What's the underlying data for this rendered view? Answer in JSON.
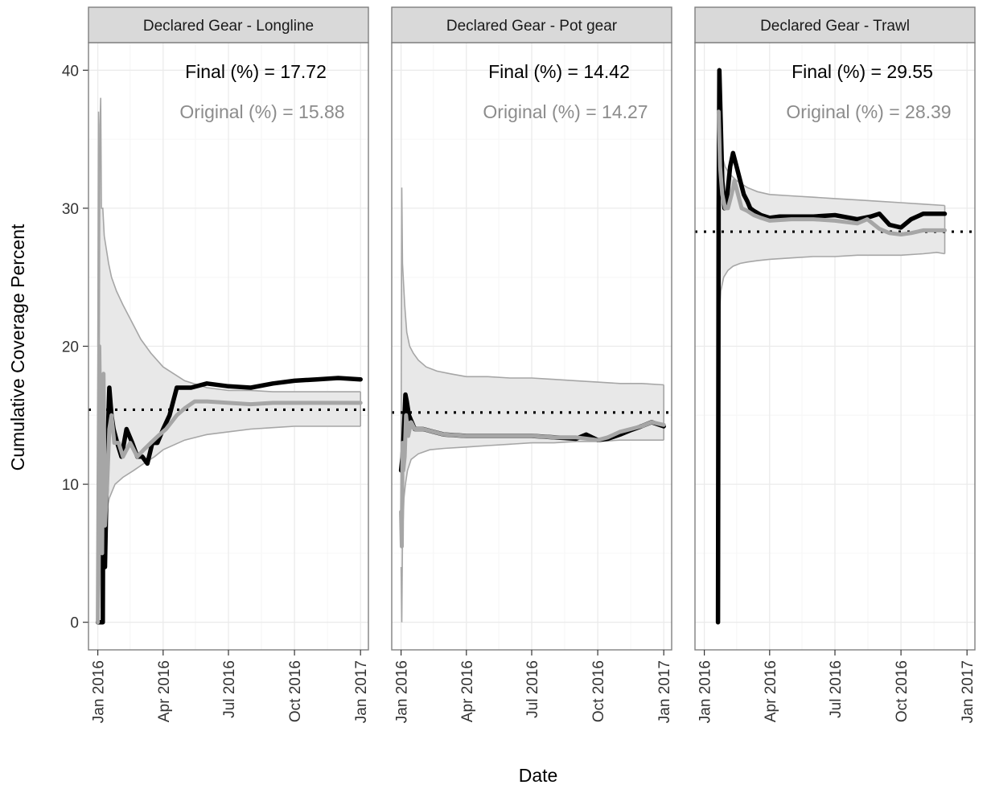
{
  "figure": {
    "xlabel": "Date",
    "ylabel": "Cumulative Coverage Percent"
  },
  "colors": {
    "panel_border": "#7f7f7f",
    "strip_fill": "#d9d9d9",
    "grid_major": "#ebebeb",
    "grid_minor": "#f6f6f6",
    "band_fill": "#e8e8e8",
    "band_line": "#a6a6a6",
    "final_line": "#000000",
    "original_line": "#a6a6a6",
    "final_text": "#000000",
    "original_text": "#8c8c8c",
    "reference_line": "#000000"
  },
  "chart_data": {
    "type": "line",
    "xlabel": "Date",
    "ylabel": "Cumulative Coverage Percent",
    "xlim": [
      "2015-12-19",
      "2017-01-12"
    ],
    "ylim": [
      -2,
      42
    ],
    "x_ticks": [
      "2016-01-01",
      "2016-04-01",
      "2016-07-01",
      "2016-10-01",
      "2017-01-01"
    ],
    "x_tick_labels": [
      "Jan 2016",
      "Apr 2016",
      "Jul 2016",
      "Oct 2016",
      "Jan 2017"
    ],
    "y_ticks": [
      0,
      10,
      20,
      30,
      40
    ],
    "y_tick_labels": [
      "0",
      "10",
      "20",
      "30",
      "40"
    ],
    "grid": true,
    "panels": [
      {
        "strip": "Declared Gear - Longline",
        "final_label": "Final (%) = 17.72",
        "original_label": "Original (%) = 15.88",
        "reference_y": 15.4,
        "series": [
          {
            "key": "final",
            "x": [
              "2016-01-01",
              "2016-01-03",
              "2016-01-06",
              "2016-01-08",
              "2016-01-09",
              "2016-01-11",
              "2016-01-14",
              "2016-01-17",
              "2016-01-20",
              "2016-01-23",
              "2016-01-28",
              "2016-02-03",
              "2016-02-10",
              "2016-02-18",
              "2016-02-25",
              "2016-03-03",
              "2016-03-10",
              "2016-03-17",
              "2016-03-24",
              "2016-04-01",
              "2016-04-10",
              "2016-04-20",
              "2016-05-01",
              "2016-05-10",
              "2016-06-01",
              "2016-07-01",
              "2016-08-01",
              "2016-09-01",
              "2016-10-01",
              "2016-11-01",
              "2016-12-01",
              "2017-01-01"
            ],
            "y": [
              0,
              0,
              0,
              0,
              15,
              4,
              12,
              17,
              15,
              14,
              13,
              12,
              14,
              13,
              12,
              12,
              11.5,
              13,
              13,
              14,
              15,
              17,
              17,
              17,
              17.3,
              17.1,
              17.0,
              17.3,
              17.5,
              17.6,
              17.7,
              17.6
            ]
          },
          {
            "key": "original",
            "x": [
              "2016-01-01",
              "2016-01-03",
              "2016-01-05",
              "2016-01-07",
              "2016-01-09",
              "2016-01-11",
              "2016-01-14",
              "2016-01-17",
              "2016-01-20",
              "2016-01-24",
              "2016-01-30",
              "2016-02-05",
              "2016-02-15",
              "2016-02-25",
              "2016-03-05",
              "2016-03-15",
              "2016-03-25",
              "2016-04-05",
              "2016-04-20",
              "2016-05-01",
              "2016-05-15",
              "2016-06-01",
              "2016-07-01",
              "2016-08-01",
              "2016-09-01",
              "2016-10-01",
              "2016-11-01",
              "2016-12-01",
              "2017-01-01"
            ],
            "y": [
              0,
              20,
              12,
              5,
              18,
              7,
              10,
              14,
              15,
              13,
              13,
              12,
              13,
              12,
              12.5,
              13,
              13.5,
              14,
              15,
              15.5,
              16,
              16,
              15.9,
              15.8,
              15.9,
              15.9,
              15.9,
              15.9,
              15.9
            ]
          },
          {
            "key": "band_upper",
            "x": [
              "2016-01-01",
              "2016-01-02",
              "2016-01-03",
              "2016-01-04",
              "2016-01-05",
              "2016-01-06",
              "2016-01-08",
              "2016-01-10",
              "2016-01-13",
              "2016-01-16",
              "2016-01-20",
              "2016-01-27",
              "2016-02-05",
              "2016-02-15",
              "2016-03-01",
              "2016-03-15",
              "2016-04-01",
              "2016-05-01",
              "2016-06-01",
              "2016-07-01",
              "2016-08-01",
              "2016-09-01",
              "2016-10-01",
              "2016-11-01",
              "2016-12-01",
              "2017-01-01"
            ],
            "y": [
              20,
              37,
              18,
              36,
              38,
              30,
              30,
              28,
              27,
              26,
              25,
              24,
              23,
              22,
              20.5,
              19.5,
              18.5,
              17.5,
              17,
              16.8,
              16.8,
              16.7,
              16.7,
              16.7,
              16.7,
              16.7
            ]
          },
          {
            "key": "band_lower",
            "x": [
              "2016-01-01",
              "2016-01-02",
              "2016-01-03",
              "2016-01-04",
              "2016-01-06",
              "2016-01-08",
              "2016-01-10",
              "2016-01-13",
              "2016-01-17",
              "2016-01-25",
              "2016-02-05",
              "2016-02-20",
              "2016-03-05",
              "2016-03-20",
              "2016-04-01",
              "2016-05-01",
              "2016-06-01",
              "2016-07-01",
              "2016-08-01",
              "2016-09-01",
              "2016-10-01",
              "2016-11-01",
              "2016-12-01",
              "2017-01-01"
            ],
            "y": [
              0,
              5,
              1,
              3,
              6,
              5,
              7,
              8,
              9,
              10,
              10.5,
              11,
              11.5,
              12,
              12.5,
              13.2,
              13.6,
              13.8,
              14.0,
              14.1,
              14.2,
              14.2,
              14.2,
              14.2
            ]
          }
        ]
      },
      {
        "strip": "Declared Gear - Pot gear",
        "final_label": "Final (%) = 14.42",
        "original_label": "Original (%) = 14.27",
        "reference_y": 15.2,
        "series": [
          {
            "key": "final",
            "x": [
              "2016-01-01",
              "2016-01-03",
              "2016-01-05",
              "2016-01-07",
              "2016-01-09",
              "2016-01-12",
              "2016-01-16",
              "2016-01-20",
              "2016-01-25",
              "2016-02-01",
              "2016-02-15",
              "2016-03-01",
              "2016-04-01",
              "2016-05-01",
              "2016-06-01",
              "2016-07-01",
              "2016-08-01",
              "2016-09-01",
              "2016-09-15",
              "2016-10-01",
              "2016-10-15",
              "2016-11-01",
              "2016-11-15",
              "2016-12-01",
              "2016-12-15",
              "2017-01-01"
            ],
            "y": [
              11,
              12,
              14,
              16.5,
              16,
              15,
              14.5,
              14,
              14,
              14,
              13.8,
              13.6,
              13.5,
              13.5,
              13.5,
              13.5,
              13.4,
              13.3,
              13.6,
              13.2,
              13.3,
              13.6,
              13.9,
              14.2,
              14.5,
              14.2
            ]
          },
          {
            "key": "original",
            "x": [
              "2016-01-01",
              "2016-01-02",
              "2016-01-03",
              "2016-01-04",
              "2016-01-06",
              "2016-01-08",
              "2016-01-11",
              "2016-01-15",
              "2016-01-20",
              "2016-02-01",
              "2016-02-15",
              "2016-03-01",
              "2016-04-01",
              "2016-05-01",
              "2016-06-01",
              "2016-07-01",
              "2016-08-01",
              "2016-09-01",
              "2016-10-01",
              "2016-10-15",
              "2016-11-01",
              "2016-12-01",
              "2016-12-15",
              "2017-01-01"
            ],
            "y": [
              8,
              5.5,
              13,
              11,
              12,
              15,
              13.5,
              14.5,
              14,
              14,
              13.8,
              13.6,
              13.5,
              13.5,
              13.5,
              13.5,
              13.4,
              13.4,
              13.2,
              13.4,
              13.8,
              14.2,
              14.5,
              14.3
            ]
          },
          {
            "key": "band_upper",
            "x": [
              "2016-01-01",
              "2016-01-02",
              "2016-01-03",
              "2016-01-04",
              "2016-01-06",
              "2016-01-09",
              "2016-01-13",
              "2016-01-18",
              "2016-01-25",
              "2016-02-05",
              "2016-02-20",
              "2016-03-10",
              "2016-04-01",
              "2016-05-01",
              "2016-06-01",
              "2016-07-01",
              "2016-08-01",
              "2016-09-01",
              "2016-10-01",
              "2016-11-01",
              "2016-12-01",
              "2017-01-01"
            ],
            "y": [
              12,
              31.5,
              26,
              25,
              23,
              21,
              20,
              19.5,
              19,
              18.5,
              18.2,
              18,
              17.8,
              17.8,
              17.7,
              17.7,
              17.6,
              17.5,
              17.4,
              17.3,
              17.3,
              17.2
            ]
          },
          {
            "key": "band_lower",
            "x": [
              "2016-01-01",
              "2016-01-02",
              "2016-01-03",
              "2016-01-05",
              "2016-01-07",
              "2016-01-10",
              "2016-01-15",
              "2016-01-25",
              "2016-02-10",
              "2016-03-01",
              "2016-04-01",
              "2016-05-01",
              "2016-06-01",
              "2016-07-01",
              "2016-08-01",
              "2016-09-01",
              "2016-10-01",
              "2016-11-01",
              "2016-12-01",
              "2017-01-01"
            ],
            "y": [
              4,
              0,
              6,
              9,
              10,
              11,
              11.8,
              12.2,
              12.5,
              12.6,
              12.7,
              12.8,
              12.9,
              13.0,
              13.0,
              13.1,
              13.1,
              13.2,
              13.2,
              13.2
            ]
          }
        ]
      },
      {
        "strip": "Declared Gear - Trawl",
        "final_label": "Final (%) = 29.55",
        "original_label": "Original (%) = 28.39",
        "reference_y": 28.3,
        "series": [
          {
            "key": "final",
            "x": [
              "2016-01-20",
              "2016-01-21",
              "2016-01-22",
              "2016-01-23",
              "2016-01-26",
              "2016-01-29",
              "2016-02-02",
              "2016-02-06",
              "2016-02-10",
              "2016-02-15",
              "2016-02-20",
              "2016-02-25",
              "2016-03-01",
              "2016-03-05",
              "2016-03-10",
              "2016-03-20",
              "2016-04-01",
              "2016-04-15",
              "2016-05-01",
              "2016-06-01",
              "2016-07-01",
              "2016-08-01",
              "2016-08-20",
              "2016-09-01",
              "2016-09-15",
              "2016-10-01",
              "2016-10-15",
              "2016-11-01",
              "2016-11-15",
              "2016-12-01"
            ],
            "y": [
              0,
              30,
              40,
              38,
              32,
              30,
              31,
              33,
              34,
              33,
              32,
              31,
              30.5,
              30,
              29.8,
              29.5,
              29.3,
              29.4,
              29.4,
              29.4,
              29.5,
              29.2,
              29.4,
              29.6,
              28.8,
              28.6,
              29.2,
              29.6,
              29.6,
              29.6
            ]
          },
          {
            "key": "original",
            "x": [
              "2016-01-21",
              "2016-01-23",
              "2016-01-26",
              "2016-01-30",
              "2016-02-03",
              "2016-02-08",
              "2016-02-12",
              "2016-02-17",
              "2016-02-22",
              "2016-03-01",
              "2016-03-10",
              "2016-03-20",
              "2016-04-01",
              "2016-05-01",
              "2016-06-01",
              "2016-07-01",
              "2016-08-01",
              "2016-08-15",
              "2016-09-01",
              "2016-09-15",
              "2016-10-01",
              "2016-10-15",
              "2016-11-01",
              "2016-11-15",
              "2016-12-01"
            ],
            "y": [
              37,
              33,
              31,
              30,
              30,
              31,
              32,
              31,
              30,
              29.8,
              29.5,
              29.3,
              29.1,
              29.2,
              29.2,
              29.1,
              28.9,
              29.2,
              28.5,
              28.2,
              28.1,
              28.2,
              28.4,
              28.4,
              28.4
            ]
          },
          {
            "key": "band_upper",
            "x": [
              "2016-01-20",
              "2016-01-22",
              "2016-01-25",
              "2016-01-30",
              "2016-02-05",
              "2016-02-15",
              "2016-03-01",
              "2016-03-15",
              "2016-04-01",
              "2016-05-01",
              "2016-06-01",
              "2016-07-01",
              "2016-08-01",
              "2016-09-01",
              "2016-10-01",
              "2016-11-01",
              "2016-12-01"
            ],
            "y": [
              39,
              37,
              34,
              33,
              32.5,
              32,
              31.5,
              31.2,
              31,
              30.9,
              30.8,
              30.7,
              30.6,
              30.5,
              30.4,
              30.3,
              30.2
            ]
          },
          {
            "key": "band_lower",
            "x": [
              "2016-01-20",
              "2016-01-22",
              "2016-01-24",
              "2016-01-28",
              "2016-02-03",
              "2016-02-10",
              "2016-02-20",
              "2016-03-01",
              "2016-03-15",
              "2016-04-01",
              "2016-05-01",
              "2016-06-01",
              "2016-07-01",
              "2016-08-01",
              "2016-09-01",
              "2016-10-01",
              "2016-11-01",
              "2016-11-20",
              "2016-12-01"
            ],
            "y": [
              20,
              22,
              24,
              25,
              25.5,
              25.8,
              26,
              26.1,
              26.2,
              26.3,
              26.4,
              26.5,
              26.5,
              26.6,
              26.6,
              26.6,
              26.7,
              26.8,
              26.7
            ]
          }
        ]
      }
    ]
  }
}
